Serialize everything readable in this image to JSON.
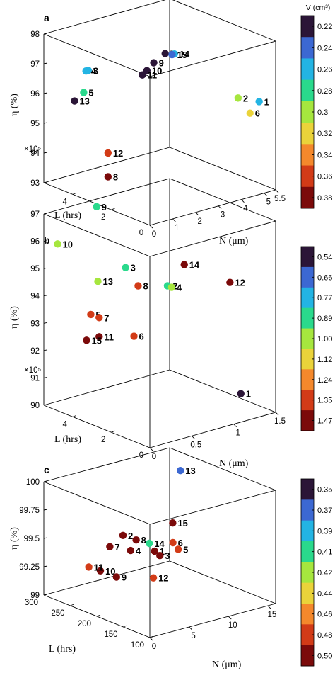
{
  "colorbar_title": "V (cm³)",
  "axis_labels": {
    "eta": "η (%)",
    "L": "L (hrs)",
    "N": "N (μm)",
    "L_exponent": "×10⁵"
  },
  "chart_data": [
    {
      "type": "scatter",
      "panel": "a",
      "title": "a",
      "xlabel": "N (μm)",
      "ylabel": "L (hrs)",
      "zlabel": "η (%)",
      "xlim": [
        0,
        5.5
      ],
      "ylim": [
        0,
        550000
      ],
      "zlim": [
        93,
        98
      ],
      "x_ticks": [
        "0",
        "1",
        "2",
        "3",
        "4",
        "5",
        "5.5"
      ],
      "x_tick_values": [
        0,
        1,
        2,
        3,
        4,
        5,
        5.5
      ],
      "y_ticks": [
        "2",
        "4"
      ],
      "y_tick_values": [
        200000,
        400000
      ],
      "y_origin_label": "0",
      "y_exponent": "×10⁵",
      "z_ticks": [
        "93",
        "94",
        "95",
        "96",
        "97",
        "98"
      ],
      "z_tick_values": [
        93,
        94,
        95,
        96,
        97,
        98
      ],
      "colorbar": {
        "label": "V (cm³)",
        "ticks": [
          "0.22",
          "0.24",
          "0.26",
          "0.28",
          "0.3",
          "0.32",
          "0.34",
          "0.36",
          "0.38"
        ],
        "reversed": true
      },
      "points": [
        {
          "label": "1",
          "x": 5.2,
          "y": 50000,
          "z": 95.9,
          "v": 0.35
        },
        {
          "label": "2",
          "x": 4.7,
          "y": 100000,
          "z": 96.0,
          "v": 0.3
        },
        {
          "label": "3",
          "x": 1.1,
          "y": 450000,
          "z": 96.8,
          "v": 0.33
        },
        {
          "label": "4",
          "x": 1.0,
          "y": 450000,
          "z": 96.8,
          "v": 0.33
        },
        {
          "label": "5",
          "x": 0.9,
          "y": 450000,
          "z": 96.1,
          "v": 0.32
        },
        {
          "label": "6",
          "x": 4.8,
          "y": 50000,
          "z": 95.6,
          "v": 0.28
        },
        {
          "label": "7",
          "x": 3.2,
          "y": 300000,
          "z": 97.3,
          "v": 0.38
        },
        {
          "label": "8",
          "x": 0.7,
          "y": 300000,
          "z": 93.7,
          "v": 0.22
        },
        {
          "label": "9",
          "x": 2.7,
          "y": 300000,
          "z": 97.1,
          "v": 0.38
        },
        {
          "label": "10",
          "x": 2.4,
          "y": 300000,
          "z": 96.9,
          "v": 0.38
        },
        {
          "label": "11",
          "x": 2.2,
          "y": 300000,
          "z": 96.8,
          "v": 0.38
        },
        {
          "label": "12",
          "x": 0.7,
          "y": 300000,
          "z": 94.5,
          "v": 0.24
        },
        {
          "label": "13",
          "x": 0.5,
          "y": 450000,
          "z": 95.9,
          "v": 0.38
        },
        {
          "label": "14",
          "x": 3.6,
          "y": 300000,
          "z": 97.2,
          "v": 0.34
        },
        {
          "label": "15",
          "x": 3.5,
          "y": 300000,
          "z": 97.2,
          "v": 0.36
        }
      ]
    },
    {
      "type": "scatter",
      "panel": "b",
      "title": "b",
      "xlabel": "N (μm)",
      "ylabel": "L (hrs)",
      "zlabel": "η (%)",
      "xlim": [
        0,
        1.5
      ],
      "ylim": [
        0,
        550000
      ],
      "zlim": [
        90,
        97
      ],
      "x_ticks": [
        "0",
        "0.5",
        "1",
        "1.5"
      ],
      "x_tick_values": [
        0,
        0.5,
        1,
        1.5
      ],
      "y_ticks": [
        "2",
        "4"
      ],
      "y_tick_values": [
        200000,
        400000
      ],
      "y_origin_label": "0",
      "y_exponent": "×10⁵",
      "z_ticks": [
        "90",
        "91",
        "92",
        "93",
        "94",
        "95",
        "96",
        "97"
      ],
      "z_tick_values": [
        90,
        91,
        92,
        93,
        94,
        95,
        96,
        97
      ],
      "colorbar": {
        "label": "",
        "ticks": [
          "0.54",
          "0.66",
          "0.77",
          "0.89",
          "1.00",
          "1.12",
          "1.24",
          "1.35",
          "1.47"
        ],
        "reversed": true
      },
      "points": [
        {
          "label": "1",
          "x": 1.2,
          "y": 50000,
          "z": 90.8,
          "v": 1.47
        },
        {
          "label": "2",
          "x": 0.9,
          "y": 300000,
          "z": 94.3,
          "v": 1.12
        },
        {
          "label": "3",
          "x": 0.4,
          "y": 300000,
          "z": 95.4,
          "v": 1.1
        },
        {
          "label": "4",
          "x": 0.95,
          "y": 300000,
          "z": 94.2,
          "v": 0.95
        },
        {
          "label": "5",
          "x": 0.1,
          "y": 350000,
          "z": 93.8,
          "v": 0.7
        },
        {
          "label": "6",
          "x": 0.5,
          "y": 300000,
          "z": 92.8,
          "v": 0.7
        },
        {
          "label": "7",
          "x": 0.2,
          "y": 350000,
          "z": 93.6,
          "v": 0.7
        },
        {
          "label": "8",
          "x": 0.55,
          "y": 300000,
          "z": 94.6,
          "v": 0.7
        },
        {
          "label": "9",
          "x": 0.4,
          "y": 450000,
          "z": 97.2,
          "v": 1.1
        },
        {
          "label": "10",
          "x": 0.05,
          "y": 500000,
          "z": 96.0,
          "v": 0.95
        },
        {
          "label": "11",
          "x": 0.2,
          "y": 350000,
          "z": 92.9,
          "v": 0.54
        },
        {
          "label": "12",
          "x": 1.3,
          "y": 150000,
          "z": 94.5,
          "v": 0.54
        },
        {
          "label": "13",
          "x": 0.3,
          "y": 400000,
          "z": 94.7,
          "v": 0.95
        },
        {
          "label": "14",
          "x": 1.1,
          "y": 300000,
          "z": 94.9,
          "v": 0.54
        },
        {
          "label": "15",
          "x": 0.05,
          "y": 350000,
          "z": 92.9,
          "v": 0.54
        }
      ]
    },
    {
      "type": "scatter",
      "panel": "c",
      "title": "c",
      "xlabel": "N (μm)",
      "ylabel": "L (hrs)",
      "zlabel": "η (%)",
      "xlim": [
        0,
        16
      ],
      "ylim": [
        100,
        300
      ],
      "zlim": [
        99,
        100
      ],
      "x_ticks": [
        "0",
        "5",
        "10",
        "15"
      ],
      "x_tick_values": [
        0,
        5,
        10,
        15
      ],
      "y_ticks": [
        "100",
        "150",
        "200",
        "250",
        "300"
      ],
      "y_tick_values": [
        100,
        150,
        200,
        250,
        300
      ],
      "y_origin_label": "",
      "y_exponent": "",
      "z_ticks": [
        "99",
        "99.25",
        "99.5",
        "99.75",
        "100"
      ],
      "z_tick_values": [
        99,
        99.25,
        99.5,
        99.75,
        100
      ],
      "colorbar": {
        "label": "",
        "ticks": [
          "0.35",
          "0.37",
          "0.39",
          "0.41",
          "0.42",
          "0.44",
          "0.46",
          "0.48",
          "0.50"
        ],
        "reversed": true
      },
      "points": [
        {
          "label": "1",
          "x": 6.0,
          "y": 180,
          "z": 99.5,
          "v": 0.35
        },
        {
          "label": "2",
          "x": 4.0,
          "y": 210,
          "z": 99.62,
          "v": 0.35
        },
        {
          "label": "3",
          "x": 6.0,
          "y": 170,
          "z": 99.48,
          "v": 0.35
        },
        {
          "label": "4",
          "x": 4.3,
          "y": 200,
          "z": 99.5,
          "v": 0.35
        },
        {
          "label": "5",
          "x": 9.0,
          "y": 180,
          "z": 99.46,
          "v": 0.37
        },
        {
          "label": "6",
          "x": 9.0,
          "y": 190,
          "z": 99.5,
          "v": 0.37
        },
        {
          "label": "7",
          "x": 3.0,
          "y": 220,
          "z": 99.52,
          "v": 0.35
        },
        {
          "label": "8",
          "x": 5.0,
          "y": 200,
          "z": 99.58,
          "v": 0.35
        },
        {
          "label": "9",
          "x": 2.5,
          "y": 200,
          "z": 99.3,
          "v": 0.35
        },
        {
          "label": "10",
          "x": 1.8,
          "y": 220,
          "z": 99.33,
          "v": 0.35
        },
        {
          "label": "11",
          "x": 1.0,
          "y": 230,
          "z": 99.36,
          "v": 0.37
        },
        {
          "label": "12",
          "x": 4.5,
          "y": 160,
          "z": 99.33,
          "v": 0.37
        },
        {
          "label": "13",
          "x": 14.0,
          "y": 250,
          "z": 99.93,
          "v": 0.49
        },
        {
          "label": "14",
          "x": 6.0,
          "y": 190,
          "z": 99.55,
          "v": 0.44
        },
        {
          "label": "15",
          "x": 11.0,
          "y": 220,
          "z": 99.58,
          "v": 0.35
        }
      ]
    }
  ]
}
